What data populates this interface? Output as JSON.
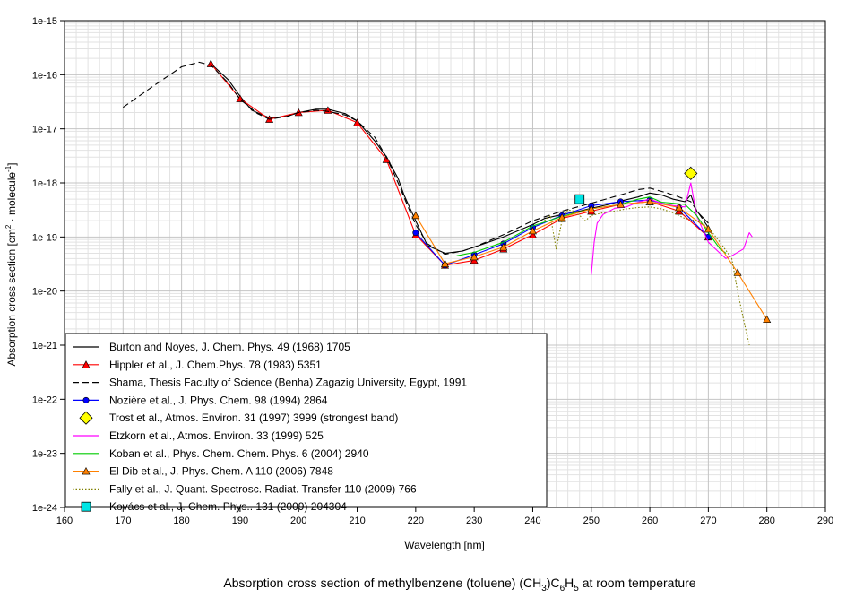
{
  "chart_data": {
    "type": "line",
    "title": "Absorption cross section of methylbenzene (toluene) (CH3)C6H5 at room temperature",
    "title_parts": {
      "pre": "Absorption cross section of methylbenzene (toluene) (CH",
      "sub1": "3",
      "mid": ")C",
      "sub2": "6",
      "mid2": "H",
      "sub3": "5",
      "post": " at room temperature"
    },
    "xlabel": "Wavelength [nm]",
    "ylabel_parts": {
      "pre": "Absorption cross section [cm",
      "sup1": "2",
      "mid": " · molecule",
      "sup2": "-1",
      "post": "]"
    },
    "xlim": [
      160,
      290
    ],
    "ylim_log10": [
      -24,
      -15
    ],
    "y_scale": "log",
    "grid": true,
    "legend_position": "bottom-left",
    "x_ticks": [
      "160",
      "170",
      "180",
      "190",
      "200",
      "210",
      "220",
      "230",
      "240",
      "250",
      "260",
      "270",
      "280",
      "290"
    ],
    "y_ticks": [
      "1e-15",
      "1e-16",
      "1e-17",
      "1e-18",
      "1e-19",
      "1e-20",
      "1e-21",
      "1e-22",
      "1e-23",
      "1e-24"
    ],
    "series": [
      {
        "name": "Burton and Noyes, J. Chem. Phys. 49 (1968) 1705",
        "style": "solid",
        "color": "#000000",
        "marker": "none",
        "x": [
          185,
          188,
          190,
          192,
          195,
          198,
          200,
          203,
          205,
          208,
          210,
          213,
          215,
          217,
          218,
          220,
          222,
          225,
          228,
          230,
          235,
          240,
          242,
          245,
          248,
          250,
          253,
          255,
          258,
          260,
          262,
          264,
          266,
          267,
          268,
          270
        ],
        "y": [
          1.6e-16,
          8e-17,
          4e-17,
          2.2e-17,
          1.6e-17,
          1.7e-17,
          2e-17,
          2.3e-17,
          2.3e-17,
          1.9e-17,
          1.4e-17,
          6e-18,
          3e-18,
          1.2e-18,
          6e-19,
          2e-19,
          7e-20,
          5e-20,
          5.5e-20,
          6.5e-20,
          1e-19,
          1.7e-19,
          2.2e-19,
          2.6e-19,
          3e-19,
          3.4e-19,
          4e-19,
          4.6e-19,
          5.5e-19,
          6.5e-19,
          6e-19,
          5e-19,
          4.5e-19,
          6e-19,
          3e-19,
          1.8e-19
        ]
      },
      {
        "name": "Hippler et al., J. Chem.Phys. 78 (1983) 5351",
        "style": "solid",
        "color": "#ff0000",
        "marker": "triangle",
        "x": [
          185,
          190,
          195,
          200,
          205,
          210,
          215,
          220,
          225,
          230,
          235,
          240,
          245,
          250,
          255,
          260,
          265,
          270
        ],
        "y": [
          1.6e-16,
          3.6e-17,
          1.5e-17,
          2e-17,
          2.2e-17,
          1.3e-17,
          2.7e-18,
          1.1e-19,
          3e-20,
          3.7e-20,
          6e-20,
          1.1e-19,
          2.2e-19,
          3e-19,
          4e-19,
          4.5e-19,
          3e-19,
          1e-19
        ]
      },
      {
        "name": "Shama, Thesis Faculty of Science (Benha) Zagazig University, Egypt, 1991",
        "style": "dashed",
        "color": "#000000",
        "marker": "none",
        "x": [
          170,
          175,
          180,
          183,
          185,
          188,
          190,
          193,
          195,
          198,
          200,
          203,
          205,
          208,
          210,
          213,
          215,
          217,
          219,
          220,
          222,
          225,
          228,
          230,
          235,
          240,
          245,
          250,
          255,
          258,
          260,
          263,
          265,
          267,
          270
        ],
        "y": [
          2.5e-17,
          6e-17,
          1.4e-16,
          1.7e-16,
          1.5e-16,
          7e-17,
          3.5e-17,
          1.9e-17,
          1.5e-17,
          1.7e-17,
          2e-17,
          2.2e-17,
          2.1e-17,
          1.8e-17,
          1.4e-17,
          7e-18,
          3e-18,
          1e-18,
          3e-19,
          1.7e-19,
          7.5e-20,
          4.8e-20,
          5.5e-20,
          6.5e-20,
          1.1e-19,
          2e-19,
          3e-19,
          4.2e-19,
          6e-19,
          7.5e-19,
          8e-19,
          6.5e-19,
          5.5e-19,
          4.5e-19,
          1.5e-19
        ]
      },
      {
        "name": "Nozière et al., J. Phys. Chem. 98 (1994) 2864",
        "style": "solid",
        "color": "#0000ff",
        "marker": "circle",
        "x": [
          220,
          225,
          230,
          235,
          240,
          245,
          250,
          255,
          260,
          265,
          270
        ],
        "y": [
          1.2e-19,
          3e-20,
          4.7e-20,
          7.5e-20,
          1.5e-19,
          2.5e-19,
          3.8e-19,
          4.5e-19,
          4.8e-19,
          3.5e-19,
          1e-19
        ]
      },
      {
        "name": "Trost et al., Atmos. Environ. 31 (1997) 3999 (strongest band)",
        "style": "none",
        "color": "#ffff00",
        "marker": "diamond",
        "x": [
          267
        ],
        "y": [
          1.5e-18
        ]
      },
      {
        "name": "Etzkorn et al., Atmos. Environ. 33 (1999) 525",
        "style": "solid",
        "color": "#ff00ff",
        "marker": "none",
        "x": [
          250,
          250.5,
          251,
          252,
          254,
          256,
          258,
          260,
          262,
          264,
          266,
          267,
          268,
          270,
          272,
          273,
          274,
          276,
          277,
          277.5
        ],
        "y": [
          2e-20,
          8e-20,
          1.8e-19,
          2.6e-19,
          3.4e-19,
          3.6e-19,
          4.4e-19,
          5e-19,
          4.2e-19,
          3.8e-19,
          3.6e-19,
          1e-18,
          2.5e-19,
          8e-20,
          5e-20,
          4e-20,
          4.5e-20,
          6e-20,
          1.2e-19,
          1e-19
        ]
      },
      {
        "name": "Koban et al., Phys. Chem. Chem. Phys. 6 (2004) 2940",
        "style": "solid",
        "color": "#00cc00",
        "marker": "none",
        "x": [
          227,
          230,
          235,
          240,
          245,
          250,
          255,
          258,
          260,
          262,
          264,
          266,
          268,
          270,
          272,
          273
        ],
        "y": [
          4.5e-20,
          5.2e-20,
          8e-20,
          1.6e-19,
          2.4e-19,
          3.3e-19,
          4e-19,
          5e-19,
          5.5e-19,
          4.4e-19,
          4.2e-19,
          4e-19,
          2.5e-19,
          1.2e-19,
          6e-20,
          5e-20
        ]
      },
      {
        "name": "El Dib et al., J. Phys. Chem. A 110 (2006) 7848",
        "style": "solid",
        "color": "#ff8000",
        "marker": "triangle",
        "x": [
          220,
          225,
          230,
          235,
          240,
          245,
          250,
          255,
          260,
          265,
          270,
          275,
          280
        ],
        "y": [
          2.5e-19,
          3.2e-20,
          4.3e-20,
          6.5e-20,
          1.3e-19,
          2.3e-19,
          3.3e-19,
          4e-19,
          4.5e-19,
          3.5e-19,
          1.4e-19,
          2.2e-20,
          3e-21
        ]
      },
      {
        "name": "Fally et al., J. Quant. Spectrosc. Radiat. Transfer 110 (2009) 766",
        "style": "dotted",
        "color": "#808000",
        "marker": "none",
        "x": [
          242,
          243,
          244,
          245,
          246,
          247,
          248,
          249,
          250,
          252,
          254,
          256,
          258,
          260,
          262,
          264,
          266,
          268,
          270,
          272,
          274,
          275,
          276,
          277
        ],
        "y": [
          2e-19,
          2.5e-19,
          6e-20,
          2e-19,
          3.2e-19,
          3e-19,
          2.5e-19,
          2e-19,
          2.5e-19,
          2.8e-19,
          3e-19,
          3.3e-19,
          3.5e-19,
          3.6e-19,
          3.3e-19,
          2.8e-19,
          2.2e-19,
          2e-19,
          1.5e-19,
          8e-20,
          4e-20,
          1e-20,
          3e-21,
          1e-21
        ]
      },
      {
        "name": "Kovács et al., J. Chem. Phys.. 131 (2009) 204304",
        "style": "none",
        "color": "#00e5e5",
        "marker": "square",
        "x": [
          248
        ],
        "y": [
          5e-19
        ]
      }
    ]
  }
}
